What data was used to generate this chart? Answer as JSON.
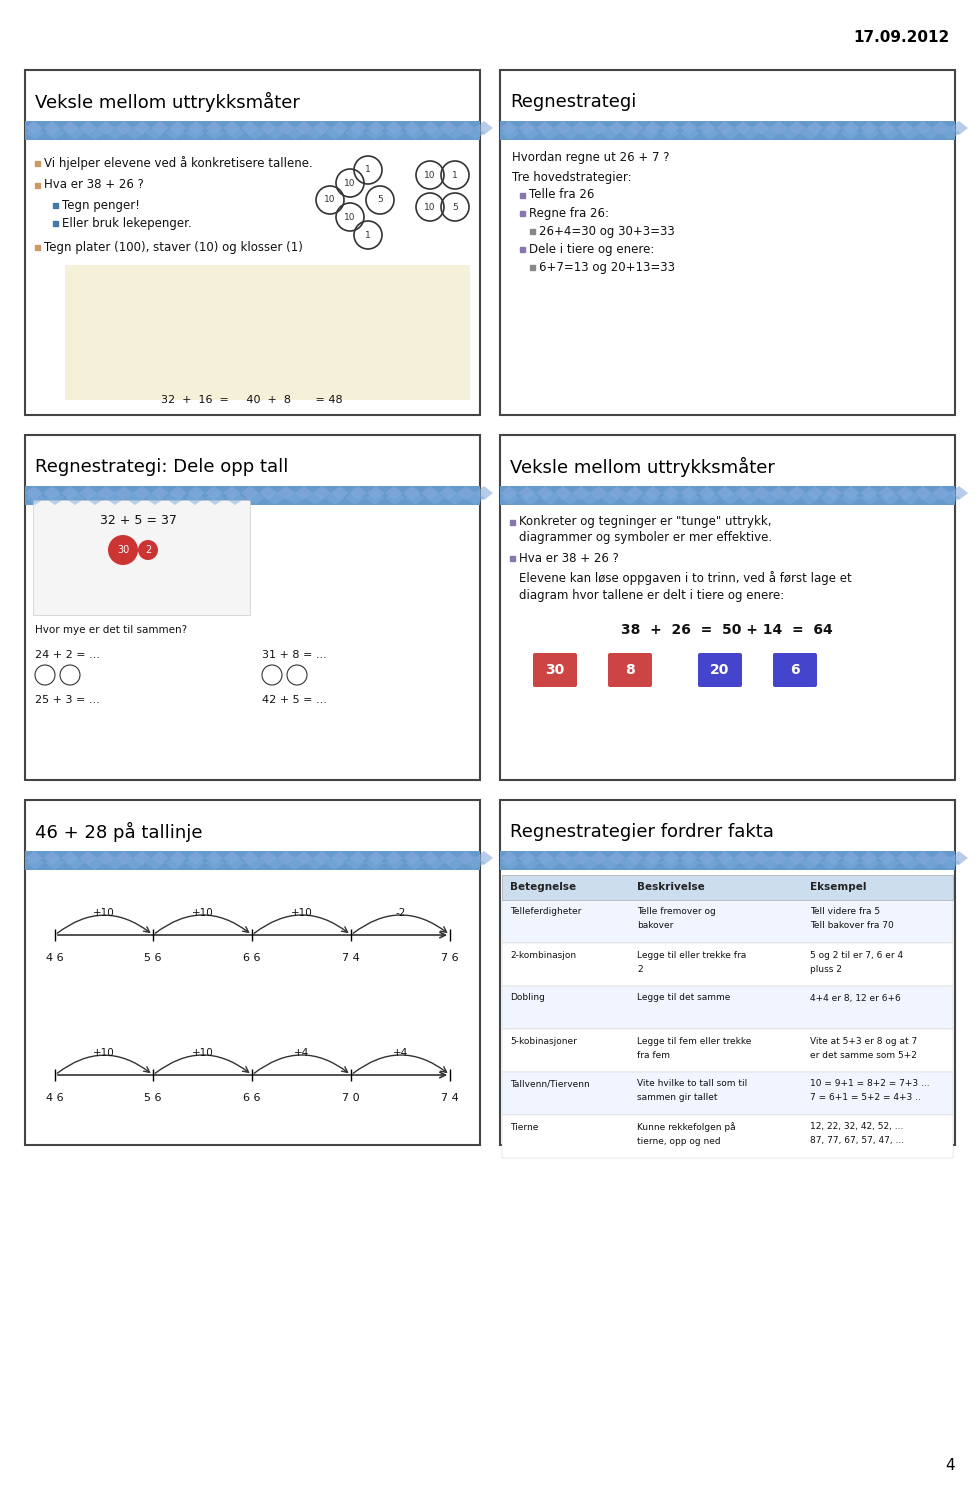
{
  "date": "17.09.2012",
  "page_number": "4",
  "background_color": "#ffffff",
  "panel_border_color": "#333333",
  "panel_bg": "#ffffff",
  "header_bar_color": "#6699cc",
  "panels": [
    {
      "title": "Veksle mellom uttrykksmåter",
      "col": 0,
      "row": 0,
      "bullet_color": "#cc8844",
      "bullets": [
        "Vi hjelper elevene ved å konkretisere tallene.",
        "Hva er 38 + 26 ?",
        "  Tegn penger!",
        "  Eller bruk lekepenger.",
        "Tegn plater (100), staver (10) og klosser (1)"
      ],
      "sub_bullets": [
        "Tegn penger!",
        "Eller bruk lekepenger."
      ],
      "image_desc": "coins_and_blocks",
      "bottom_text": "32  +  16  =     40  +  8       = 48"
    },
    {
      "title": "Regnestrategi",
      "col": 1,
      "row": 0,
      "bullet_color": "#6666aa",
      "content": [
        "Hvordan regne ut 26 + 7 ?",
        "Tre hovedstrategier:",
        "  Telle fra 26",
        "  Regne fra 26:",
        "    26+4=30 og 30+3=33",
        "  Dele i tiere og enere:",
        "    6+7=13 og 20+13=33"
      ]
    },
    {
      "title": "Regnestrategi: Dele opp tall",
      "col": 0,
      "row": 1,
      "bullet_color": "#cc8844",
      "content": [
        "32 + 5 = 37",
        "24 + 2 = ...",
        "31 + 8 = ...",
        "25 + 3 = ...",
        "42 + 5 = ..."
      ]
    },
    {
      "title": "Veksle mellom uttrykksmåter",
      "col": 1,
      "row": 1,
      "bullet_color": "#6666aa",
      "content": [
        "Konkreter og tegninger er \"tunge\" uttrykk,",
        "diagrammer og symboler er mer effektive.",
        "Hva er 38 + 26 ?",
        "Elevene kan løse oppgaven i to trinn, ved å først lage et",
        "diagram hvor tallene er delt i tiere og enere:",
        "38  +  26  =  50 + 14  =  64",
        "30   8   20   6"
      ]
    },
    {
      "title": "46 + 28 på tallinje",
      "col": 0,
      "row": 2,
      "bullet_color": "#cc8844",
      "content": [
        "+10   +10   +10   -2",
        "4 6    5 6    6 6    7 4    7 6",
        "+10   +10   +4    +4",
        "4 6    5 6    6 6    7 0    7 4"
      ]
    },
    {
      "title": "Regnestrategier fordrer fakta",
      "col": 1,
      "row": 2,
      "bullet_color": "#6666aa",
      "table": {
        "headers": [
          "Betegnelse",
          "Beskrivelse",
          "Eksempel"
        ],
        "rows": [
          [
            "Telleferdigheter",
            "Telle fremover og bakover",
            "Tell videre fra 5\nTell bakover fra 70"
          ],
          [
            "2-kombinasjon",
            "Legge til eller trekke fra 2",
            "5 og 2 til er 7, 6 er 4\npluss 2"
          ],
          [
            "Dobling",
            "Legge til det samme",
            "4+4 er 8, 12 er 6+6"
          ],
          [
            "5-kobinasjoner",
            "Legge til fem eller trekke fra fem",
            "Vite at 5+3 er 8 og at 7\ner det samme som 5+2"
          ],
          [
            "Tallvenn/Tiervenn",
            "Vite hvilke to tall som til\nsammen gir tallet",
            "10 = 9+1 = 8+2 = 7+3 ...\n7 = 6+1 = 5+2 = 4+3 .."
          ],
          [
            "Tierne",
            "Kunne rekkefolgen på\ntierne, opp og ned",
            "12, 22, 32, 42, 52, ...\n87, 77, 67, 57, 47, ..."
          ]
        ]
      }
    }
  ]
}
